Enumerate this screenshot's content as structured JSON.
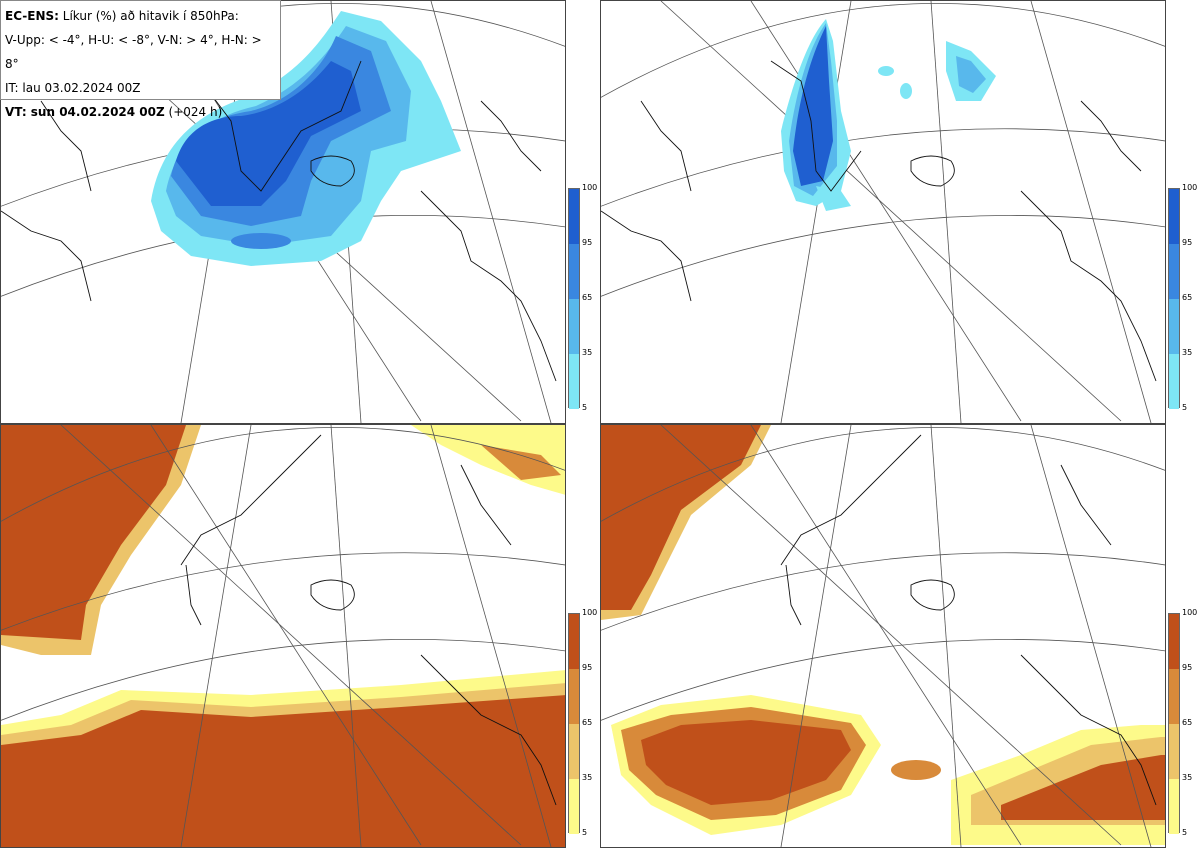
{
  "info": {
    "line1_bold": "EC-ENS:",
    "line1_rest": " Líkur (%) að hitavik í 850hPa:",
    "line2": "V-Upp: < -4°, H-U: < -8°, V-N: > 4°, H-N: > 8°",
    "line3": "IT: lau 03.02.2024 00Z",
    "line4_bold": "VT: sun 04.02.2024 00Z",
    "line4_rest": " (+024 h)"
  },
  "legend": {
    "ticks": [
      "100",
      "95",
      "65",
      "35",
      "5"
    ],
    "cold_colors": [
      "#1f5fd0",
      "#3a87e0",
      "#58b8ec",
      "#7ee6f5"
    ],
    "warm_colors": [
      "#c0501a",
      "#d88a3a",
      "#ecc46a",
      "#fdfa8a"
    ]
  },
  "panels": [
    {
      "name": "cold-4",
      "scheme": "cold"
    },
    {
      "name": "cold-8",
      "scheme": "cold"
    },
    {
      "name": "warm-4",
      "scheme": "warm"
    },
    {
      "name": "warm-8",
      "scheme": "warm"
    }
  ]
}
